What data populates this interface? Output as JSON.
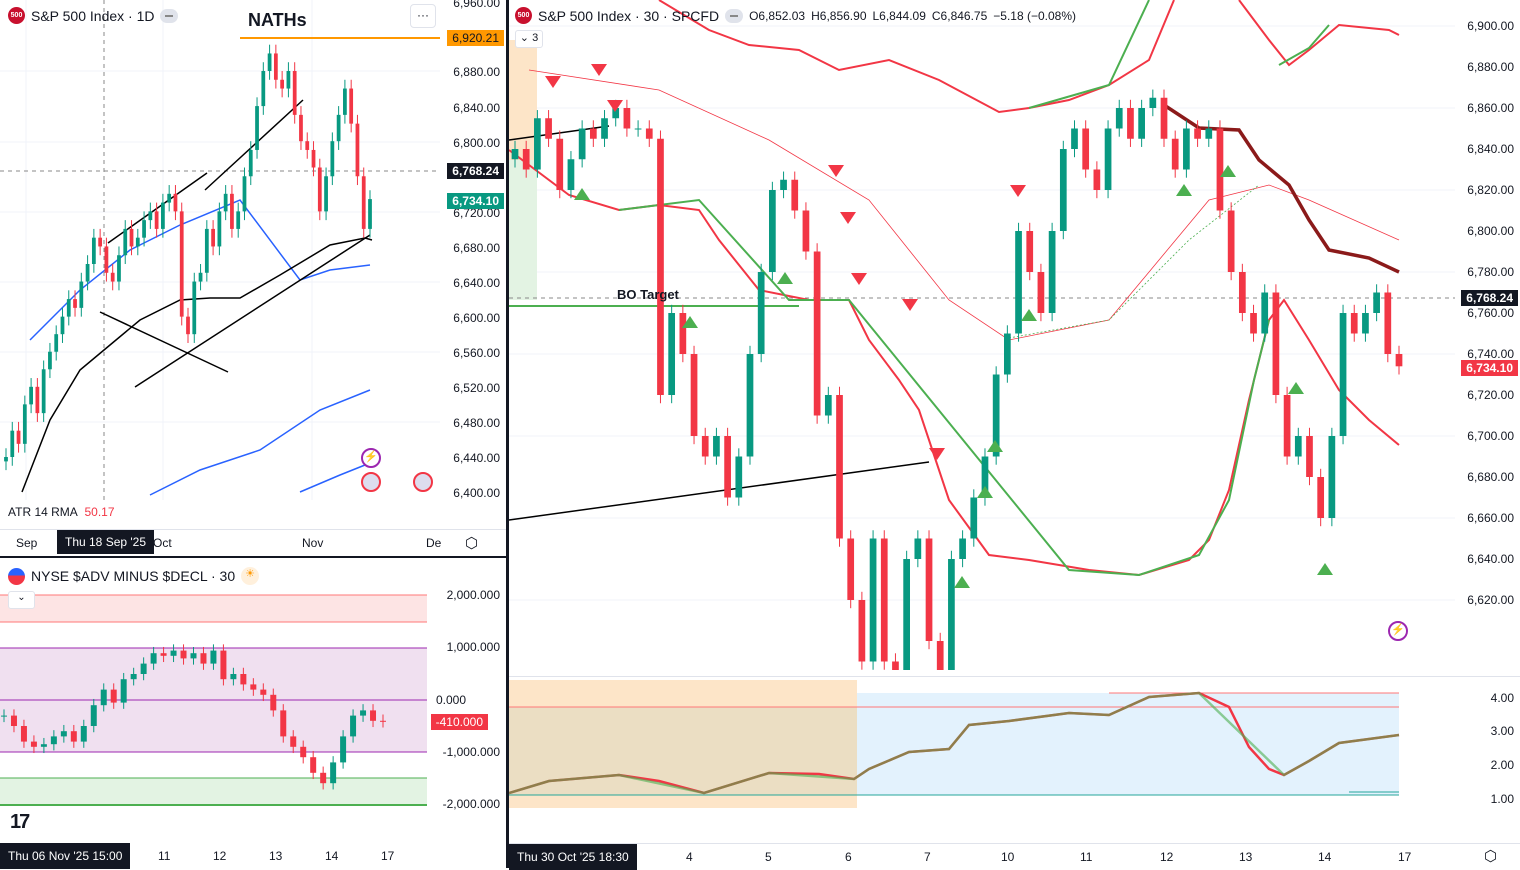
{
  "left_chart": {
    "symbol_badge": "500",
    "title": "S&P 500 Index · 1D",
    "annotation": "NATHs",
    "more_label": "···",
    "price_axis": [
      "6,960.00",
      "6,880.00",
      "6,840.00",
      "6,800.00",
      "6,720.00",
      "6,680.00",
      "6,640.00",
      "6,600.00",
      "6,560.00",
      "6,520.00",
      "6,480.00",
      "6,440.00",
      "6,400.00"
    ],
    "tags": {
      "nath": "6,920.21",
      "crosshair": "6,768.24",
      "last": "6,734.10"
    },
    "closes": [
      6440,
      6470,
      6455,
      6500,
      6520,
      6490,
      6540,
      6560,
      6580,
      6600,
      6620,
      6610,
      6640,
      6660,
      6690,
      6680,
      6650,
      6640,
      6670,
      6700,
      6680,
      6690,
      6710,
      6720,
      6700,
      6730,
      6740,
      6720,
      6600,
      6580,
      6640,
      6650,
      6700,
      6680,
      6720,
      6740,
      6700,
      6720,
      6760,
      6790,
      6840,
      6880,
      6900,
      6870,
      6860,
      6880,
      6830,
      6800,
      6790,
      6770,
      6720,
      6760,
      6800,
      6830,
      6860,
      6820,
      6760,
      6700,
      6734
    ],
    "atr": {
      "label": "ATR 14 RMA",
      "value": "50.17"
    },
    "time_axis": {
      "labels": [
        "Sep",
        "Oct",
        "Nov",
        "De"
      ],
      "crosshair": "Thu 18 Sep '25"
    }
  },
  "breadth_chart": {
    "title": "NYSE $ADV MINUS $DECL · 30",
    "price_axis": [
      "2,000.000",
      "1,000.000",
      "0.000",
      "-1,000.000",
      "-2,000.000"
    ],
    "last_tag": "-410.000",
    "closes": [
      -300,
      -500,
      -800,
      -900,
      -850,
      -700,
      -600,
      -800,
      -500,
      -100,
      200,
      -50,
      400,
      500,
      700,
      900,
      850,
      950,
      800,
      900,
      700,
      950,
      400,
      500,
      300,
      200,
      100,
      -200,
      -700,
      -900,
      -1100,
      -1400,
      -1600,
      -1200,
      -700,
      -300,
      -200,
      -400,
      -410
    ],
    "time_axis": {
      "crosshair": "Thu 06 Nov '25  15:00",
      "labels": [
        "11",
        "12",
        "13",
        "14",
        "17"
      ]
    },
    "logo": "TV"
  },
  "right_chart": {
    "symbol_badge": "500",
    "title": "S&P 500 Index · 30 · SPCFD",
    "ohlc": {
      "o": "O6,852.03",
      "h": "H6,856.90",
      "l": "L6,844.09",
      "c": "C6,846.75",
      "change": "−5.18 (−0.08%)"
    },
    "collapse_count": "3",
    "annotation": "BO Target",
    "price_axis": [
      "6,900.00",
      "6,880.00",
      "6,860.00",
      "6,840.00",
      "6,820.00",
      "6,800.00",
      "6,780.00",
      "6,760.00",
      "6,740.00",
      "6,720.00",
      "6,700.00",
      "6,680.00",
      "6,660.00",
      "6,640.00",
      "6,620.00"
    ],
    "tags": {
      "crosshair": "6,768.24",
      "last": "6,734.10"
    },
    "closes": [
      6840,
      6830,
      6855,
      6845,
      6820,
      6835,
      6850,
      6845,
      6855,
      6860,
      6850,
      6850,
      6845,
      6720,
      6760,
      6740,
      6700,
      6690,
      6700,
      6670,
      6690,
      6740,
      6780,
      6820,
      6825,
      6810,
      6790,
      6710,
      6720,
      6650,
      6620,
      6590,
      6650,
      6590,
      6560,
      6640,
      6650,
      6600,
      6580,
      6640,
      6650,
      6670,
      6690,
      6730,
      6750,
      6800,
      6780,
      6760,
      6800,
      6840,
      6850,
      6830,
      6820,
      6850,
      6860,
      6845,
      6860,
      6865,
      6845,
      6830,
      6850,
      6845,
      6850,
      6810,
      6780,
      6760,
      6750,
      6770,
      6720,
      6690,
      6700,
      6680,
      6660,
      6700,
      6760,
      6750,
      6760,
      6770,
      6740,
      6734
    ],
    "indicator_axis": [
      "4.00",
      "3.00",
      "2.00",
      "1.00"
    ],
    "time_axis": {
      "crosshair": "Thu 30 Oct '25   18:30",
      "labels": [
        "4",
        "5",
        "6",
        "7",
        "10",
        "11",
        "12",
        "13",
        "14",
        "17"
      ]
    }
  },
  "colors": {
    "up": "#089981",
    "down": "#f23645",
    "nath": "#ff9800",
    "dark": "#131722"
  }
}
